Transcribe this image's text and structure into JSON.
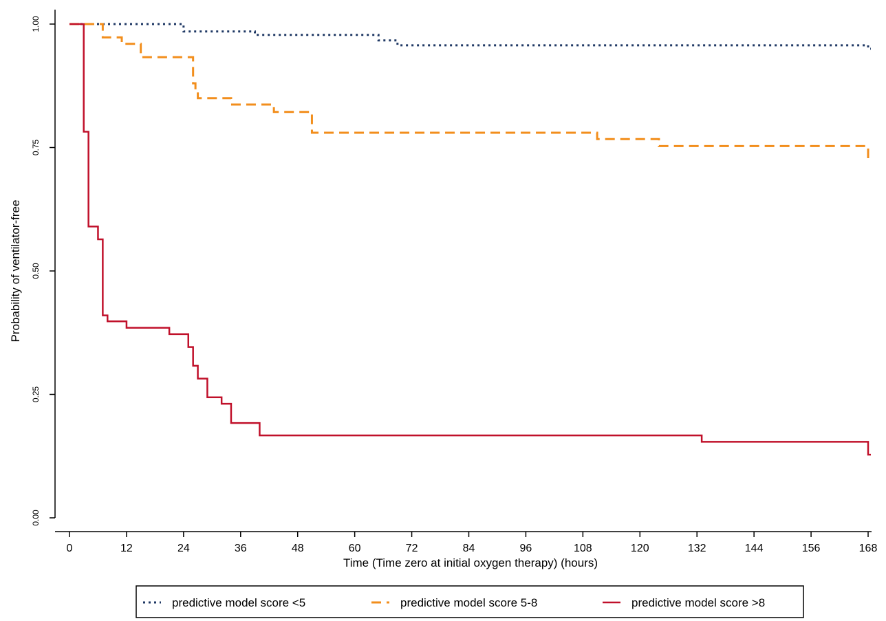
{
  "chart_data": {
    "type": "line",
    "title": "",
    "xlabel": "Time (Time zero at initial oxygen therapy) (hours)",
    "ylabel": "Probability of ventilator-free",
    "xlim": [
      0,
      168
    ],
    "ylim": [
      0,
      1
    ],
    "x_ticks": [
      "0",
      "12",
      "24",
      "36",
      "48",
      "60",
      "72",
      "84",
      "96",
      "108",
      "120",
      "132",
      "144",
      "156",
      "168"
    ],
    "y_ticks": [
      "0.00",
      "0.25",
      "0.50",
      "0.75",
      "1.00"
    ],
    "grid": false,
    "step": true,
    "legend_position": "bottom",
    "series": [
      {
        "name": "predictive model score <5",
        "color": "#1f3864",
        "style": "dotted",
        "x": [
          0,
          24,
          39,
          65,
          69,
          168
        ],
        "y": [
          1.0,
          0.985,
          0.978,
          0.967,
          0.957,
          0.95
        ]
      },
      {
        "name": "predictive model score 5-8",
        "color": "#f28e1c",
        "style": "dashed",
        "x": [
          0,
          7,
          11,
          15,
          26,
          26.5,
          27,
          34,
          43,
          51,
          111,
          124,
          168
        ],
        "y": [
          1.0,
          0.973,
          0.96,
          0.933,
          0.88,
          0.867,
          0.85,
          0.837,
          0.822,
          0.78,
          0.767,
          0.753,
          0.725
        ]
      },
      {
        "name": "predictive model score >8",
        "color": "#c0102a",
        "style": "solid",
        "x": [
          0,
          3,
          4,
          6,
          7,
          8,
          12,
          21,
          25,
          26,
          27,
          29,
          32,
          34,
          40,
          133,
          168
        ],
        "y": [
          1.0,
          0.782,
          0.59,
          0.564,
          0.41,
          0.398,
          0.385,
          0.372,
          0.346,
          0.308,
          0.282,
          0.244,
          0.231,
          0.192,
          0.167,
          0.154,
          0.128
        ]
      }
    ]
  }
}
